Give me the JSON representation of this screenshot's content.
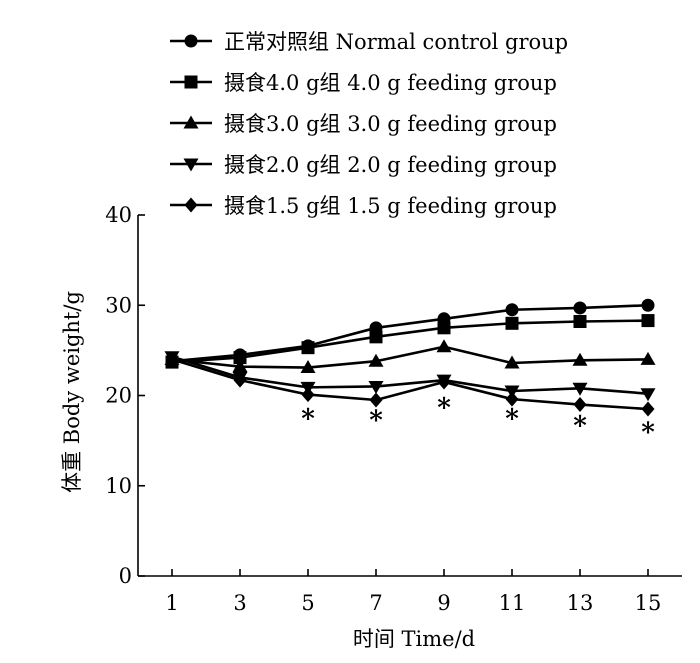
{
  "chart_data": {
    "type": "line",
    "xlabel": "时间  Time/d",
    "ylabel": "体重  Body weight/g",
    "x": [
      1,
      3,
      5,
      7,
      9,
      11,
      13,
      15
    ],
    "xticks": [
      "1",
      "3",
      "5",
      "7",
      "9",
      "11",
      "13",
      "15"
    ],
    "yticks": [
      "0",
      "10",
      "20",
      "30",
      "40"
    ],
    "xlim": [
      0,
      16
    ],
    "ylim": [
      0,
      40
    ],
    "grid": false,
    "legend_position": "top",
    "series": [
      {
        "name": "正常对照组  Normal control group",
        "marker": "circle",
        "values": [
          23.8,
          24.5,
          25.5,
          27.5,
          28.5,
          29.5,
          29.7,
          30.0
        ]
      },
      {
        "name": "摄食4.0 g组  4.0 g feeding group",
        "marker": "square",
        "values": [
          23.7,
          24.2,
          25.3,
          26.5,
          27.5,
          28.0,
          28.2,
          28.3
        ]
      },
      {
        "name": "摄食3.0 g组  3.0 g feeding group",
        "marker": "triangle-up",
        "values": [
          24.0,
          23.2,
          23.1,
          23.8,
          25.4,
          23.6,
          23.9,
          24.0
        ]
      },
      {
        "name": "摄食2.0 g组  2.0 g feeding group",
        "marker": "triangle-down",
        "values": [
          24.3,
          22.0,
          20.9,
          21.0,
          21.7,
          20.5,
          20.8,
          20.2
        ]
      },
      {
        "name": "摄食1.5 g组  1.5 g feeding group",
        "marker": "diamond",
        "values": [
          24.0,
          21.7,
          20.1,
          19.5,
          21.5,
          19.6,
          19.0,
          18.5
        ]
      }
    ],
    "annotations": [
      {
        "x": 5,
        "y": 17.8,
        "text": "*"
      },
      {
        "x": 7,
        "y": 17.6,
        "text": "*"
      },
      {
        "x": 9,
        "y": 19.0,
        "text": "*"
      },
      {
        "x": 11,
        "y": 17.8,
        "text": "*"
      },
      {
        "x": 13,
        "y": 17.0,
        "text": "*"
      },
      {
        "x": 15,
        "y": 16.3,
        "text": "*"
      }
    ]
  }
}
